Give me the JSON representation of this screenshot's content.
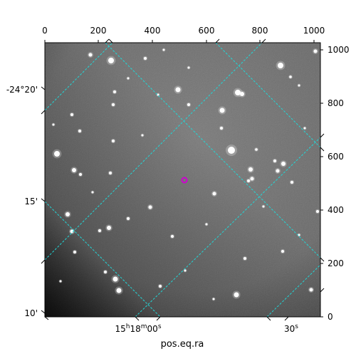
{
  "figure": {
    "x_axis_label": "pos.eq.ra",
    "top_axis_ticks": [
      "0",
      "200",
      "400",
      "600",
      "800",
      "1000"
    ],
    "right_axis_ticks": [
      "0",
      "200",
      "400",
      "600",
      "800",
      "1000"
    ],
    "left_axis_ticks": [
      "10'",
      "15'",
      "-24°20'"
    ],
    "bottom_axis_ticks": {
      "ra_label_main": "15",
      "ra_h": "h",
      "ra_mid": "18",
      "ra_m": "m",
      "ra_sec": "00",
      "ra_s": "s",
      "ra_label_2": "30",
      "ra_s2": "s"
    },
    "colors": {
      "grid": "#21d7d7",
      "marker": "#d000d0",
      "background": "#6e6e6e"
    }
  }
}
